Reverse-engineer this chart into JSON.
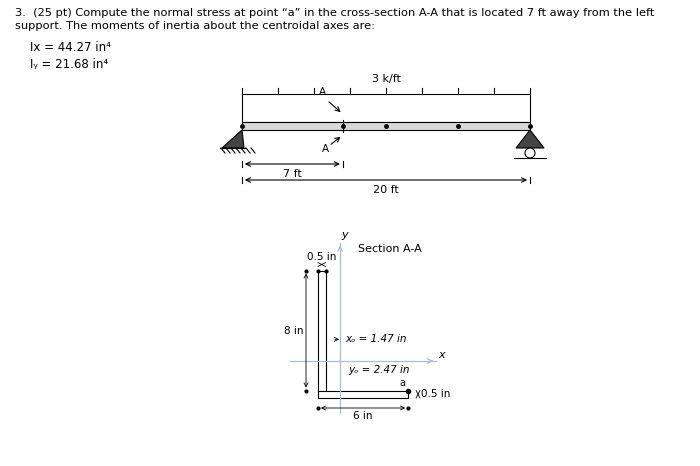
{
  "title_line1": "3.  (25 pt) Compute the normal stress at point “a” in the cross-section A-A that is located 7 ft away from the left",
  "title_line2": "support. The moments of inertia about the centroidal axes are:",
  "Ix_text": "Ix = 44.27 in⁴",
  "Iy_text": "Iᵧ = 21.68 in⁴",
  "load_label": "3 k/ft",
  "dim_7ft": "7 ft",
  "dim_20ft": "20 ft",
  "section_label": "Section A-A",
  "xg_label": "xₒ = 1.47 in",
  "yg_label": "yₒ = 2.47 in",
  "dim_05top": "0.5 in",
  "dim_8in": "8 in",
  "dim_6in": "6 in",
  "dim_05bot": "0.5 in",
  "background": "#ffffff",
  "line_color": "#000000",
  "axis_color": "#aabbdd"
}
